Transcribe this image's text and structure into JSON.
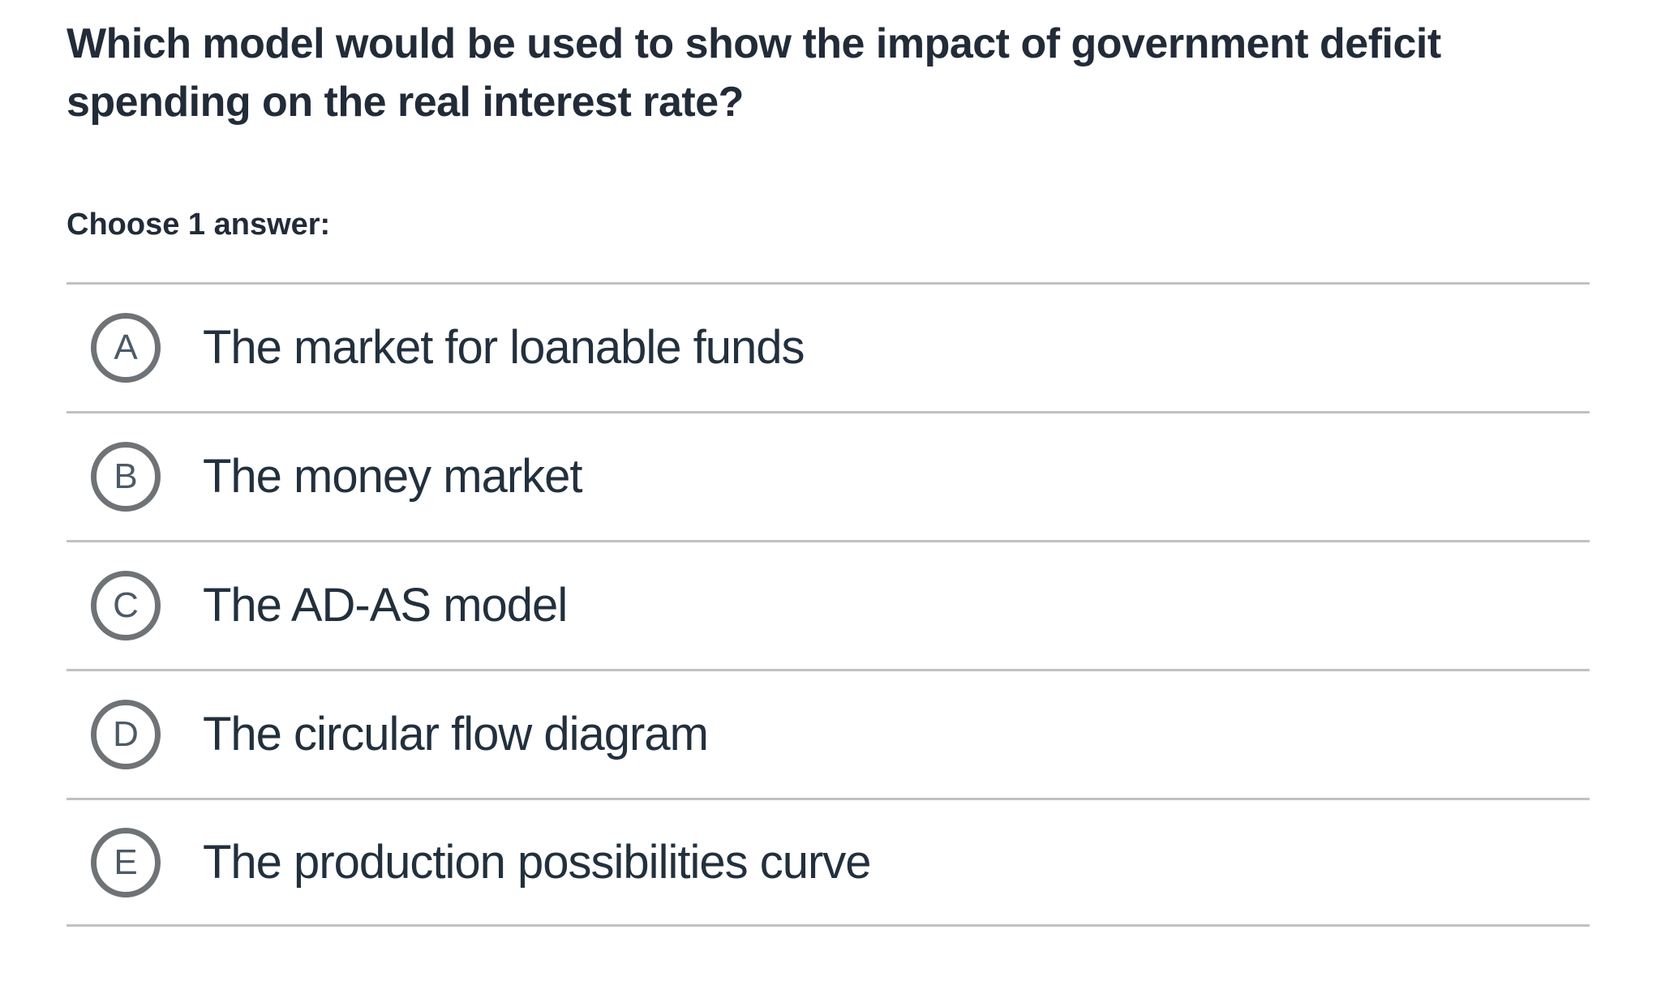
{
  "question": {
    "title_lines": [
      "Which model would be used to show the impact of government deficit",
      "spending on the real interest rate?"
    ],
    "prompt": "Choose 1 answer:"
  },
  "choices": [
    {
      "letter": "A",
      "label": "The market for loanable funds"
    },
    {
      "letter": "B",
      "label": "The money market"
    },
    {
      "letter": "C",
      "label": "The AD-AS model"
    },
    {
      "letter": "D",
      "label": "The circular flow diagram"
    },
    {
      "letter": "E",
      "label": "The production possibilities curve"
    }
  ],
  "colors": {
    "background": "#ffffff",
    "title_text": "#222b38",
    "option_text": "#22303e",
    "radio_ring": "#6e7377",
    "radio_letter": "#4d5a66",
    "divider": "#bfc2c4"
  }
}
